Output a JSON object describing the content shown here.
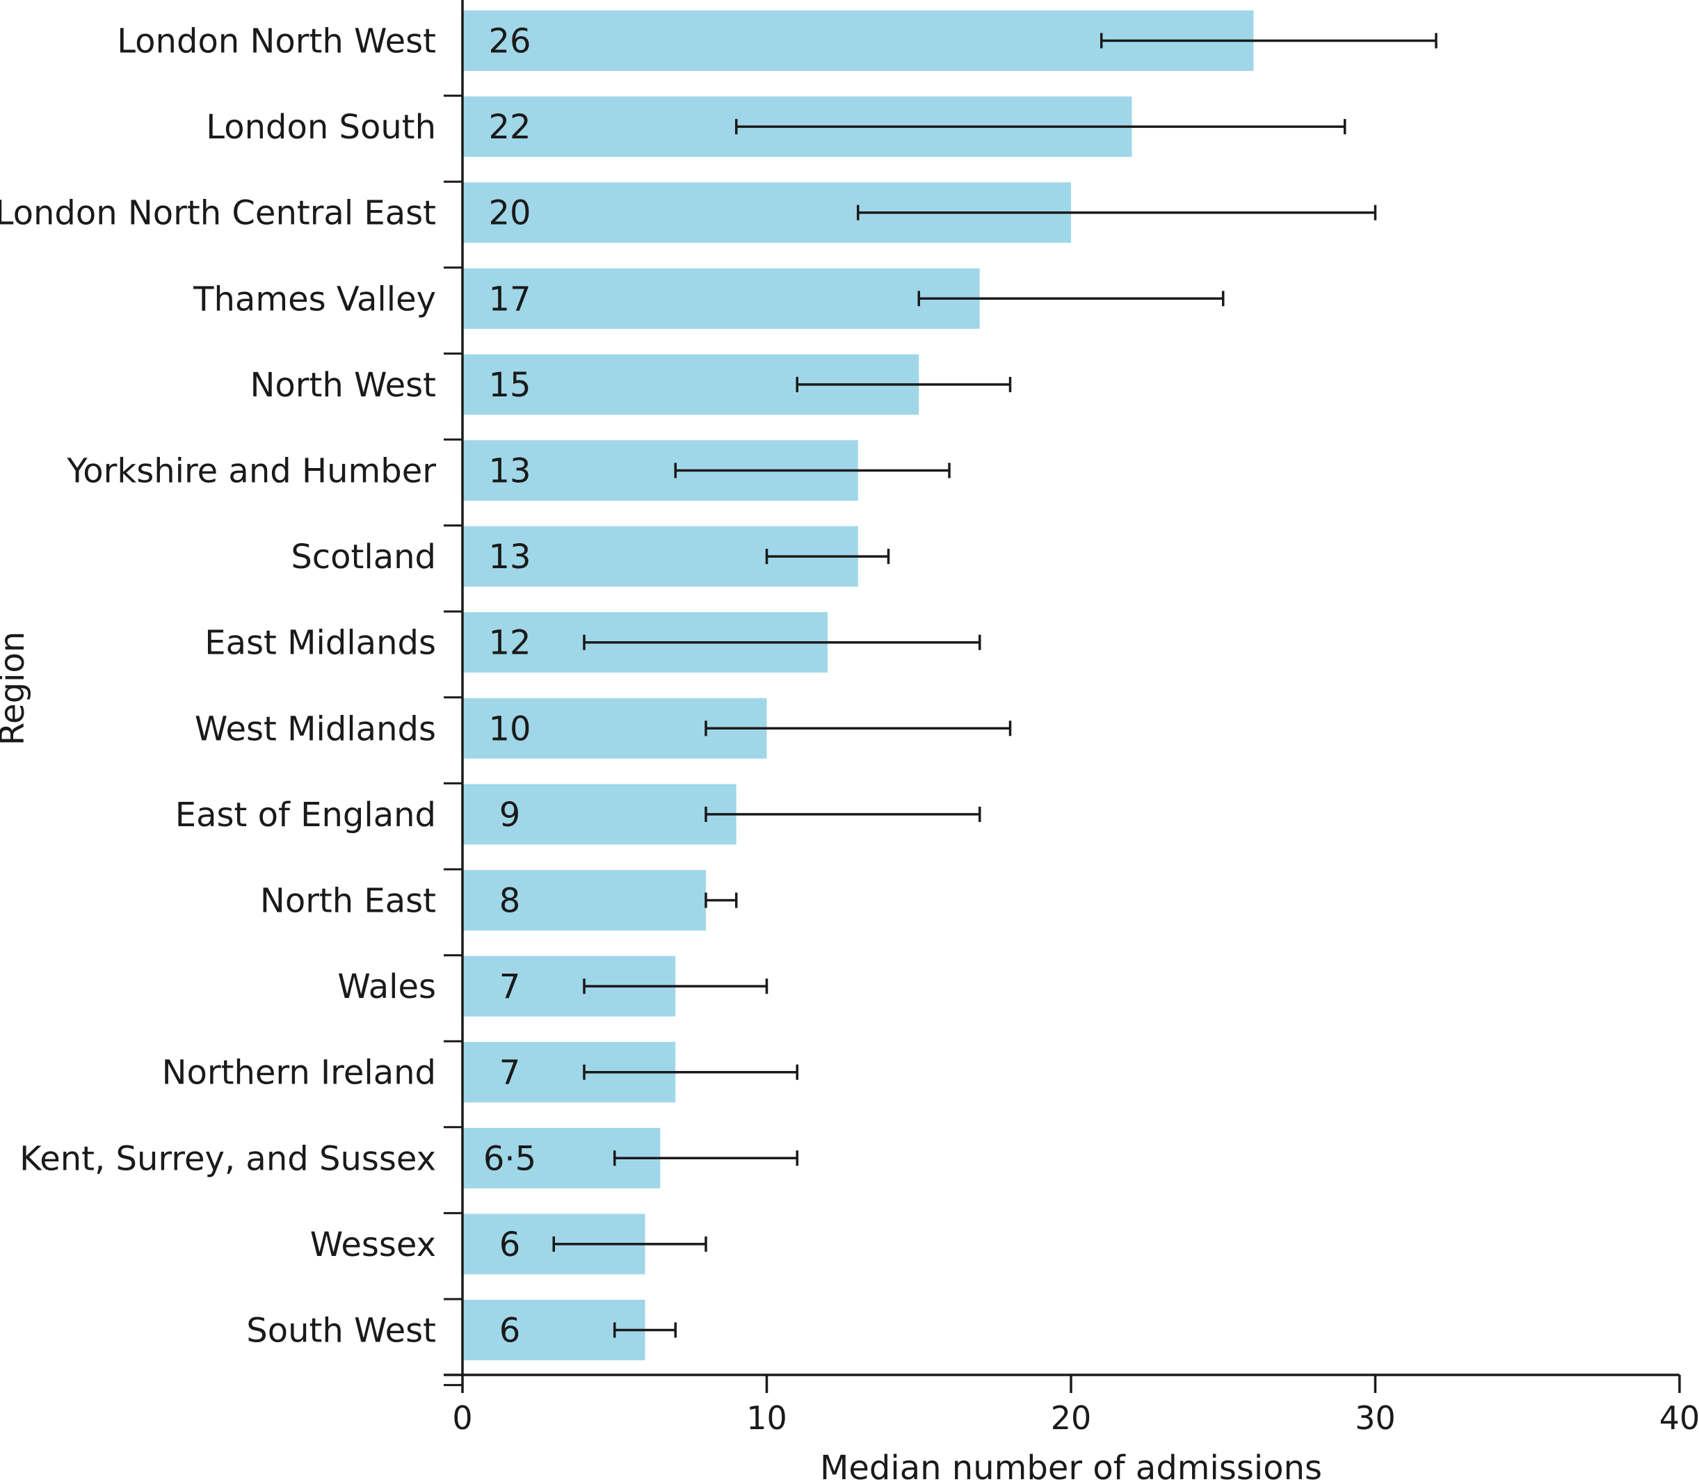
{
  "chart_data": {
    "type": "bar",
    "orientation": "horizontal",
    "title": "",
    "xlabel": "Median number of admissions",
    "ylabel": "Region",
    "xlim": [
      0,
      40
    ],
    "xticks": [
      "0",
      "10",
      "20",
      "30",
      "40"
    ],
    "grid": false,
    "bar_color": "#a0d7e8",
    "error_bar_color": "#1a1a1a",
    "categories": [
      "London North West",
      "London South",
      "London North Central East",
      "Thames Valley",
      "North West",
      "Yorkshire and Humber",
      "Scotland",
      "East Midlands",
      "West Midlands",
      "East of England",
      "North East",
      "Wales",
      "Northern Ireland",
      "Kent, Surrey, and Sussex",
      "Wessex",
      "South West"
    ],
    "values": [
      26,
      22,
      20,
      17,
      15,
      13,
      13,
      12,
      10,
      9,
      8,
      7,
      7,
      6.5,
      6,
      6
    ],
    "value_labels": [
      "26",
      "22",
      "20",
      "17",
      "15",
      "13",
      "13",
      "12",
      "10",
      "9",
      "8",
      "7",
      "7",
      "6·5",
      "6",
      "6"
    ],
    "error_low": [
      21,
      9,
      13,
      15,
      11,
      7,
      10,
      4,
      8,
      8,
      8,
      4,
      4,
      5,
      3,
      5
    ],
    "error_high": [
      32,
      29,
      30,
      25,
      18,
      16,
      14,
      17,
      18,
      17,
      9,
      10,
      11,
      11,
      8,
      7
    ]
  }
}
